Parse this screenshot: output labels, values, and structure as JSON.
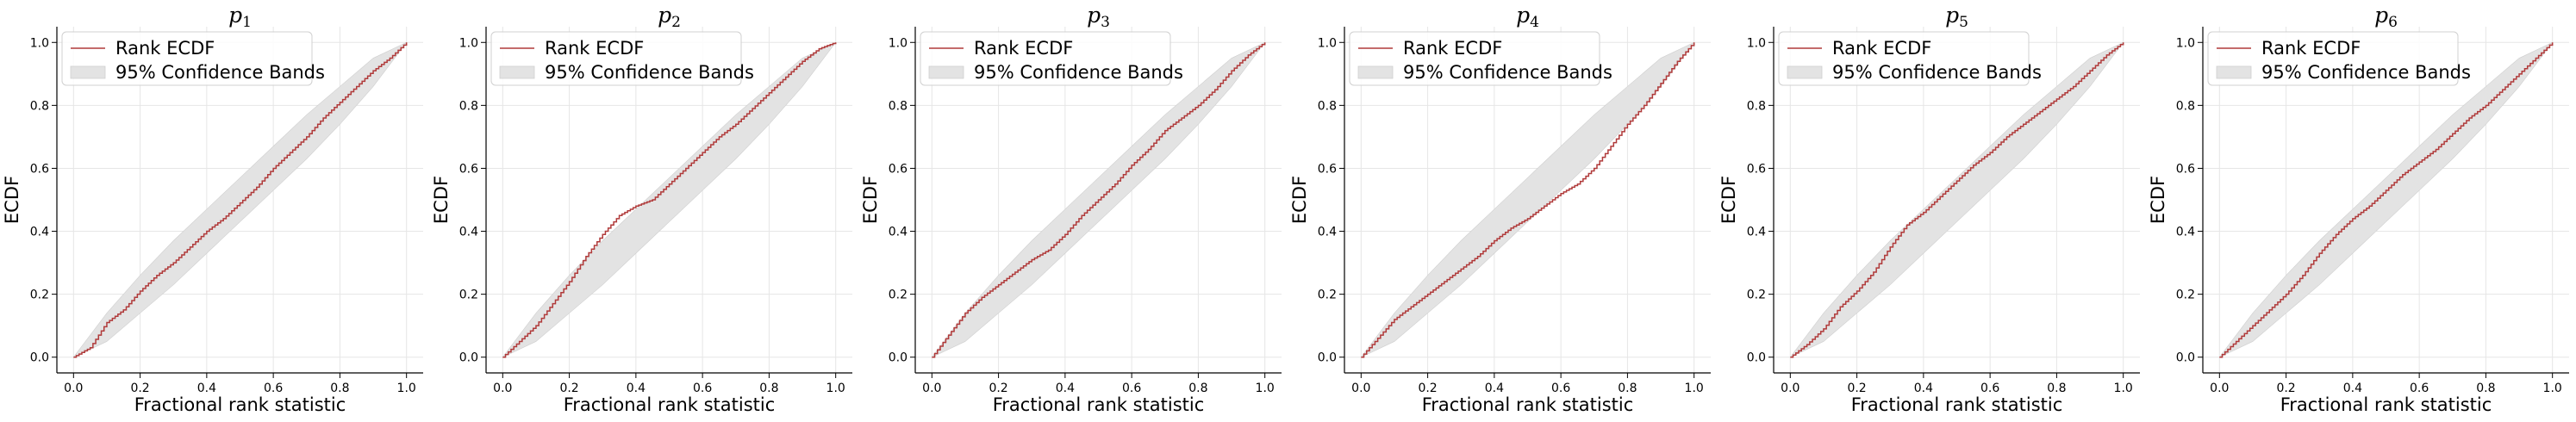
{
  "chart_data": [
    {
      "type": "line",
      "title": {
        "base": "p",
        "sub": "1"
      },
      "xlabel": "Fractional rank statistic",
      "ylabel": "ECDF",
      "xlim": [
        -0.05,
        1.05
      ],
      "ylim": [
        -0.05,
        1.05
      ],
      "xticks": [
        0.0,
        0.2,
        0.4,
        0.6,
        0.8,
        1.0
      ],
      "yticks": [
        0.0,
        0.2,
        0.4,
        0.6,
        0.8,
        1.0
      ],
      "xticklabels": [
        "0.0",
        "0.2",
        "0.4",
        "0.6",
        "0.8",
        "1.0"
      ],
      "yticklabels": [
        "0.0",
        "0.2",
        "0.4",
        "0.6",
        "0.8",
        "1.0"
      ],
      "grid": true,
      "legend_position": "top-left",
      "legend": [
        {
          "label": "Rank ECDF",
          "kind": "line"
        },
        {
          "label": "95% Confidence Bands",
          "kind": "band"
        }
      ],
      "series": [
        {
          "name": "Rank ECDF",
          "x": [
            0,
            0.05,
            0.1,
            0.15,
            0.2,
            0.25,
            0.3,
            0.35,
            0.4,
            0.45,
            0.5,
            0.55,
            0.6,
            0.65,
            0.7,
            0.75,
            0.8,
            0.85,
            0.9,
            0.95,
            1.0
          ],
          "y": [
            0.0,
            0.03,
            0.11,
            0.15,
            0.21,
            0.26,
            0.3,
            0.35,
            0.4,
            0.44,
            0.49,
            0.54,
            0.6,
            0.65,
            0.7,
            0.76,
            0.81,
            0.86,
            0.91,
            0.95,
            1.0
          ]
        }
      ],
      "bands": {
        "x": [
          0,
          0.1,
          0.2,
          0.3,
          0.4,
          0.5,
          0.6,
          0.7,
          0.8,
          0.9,
          1.0
        ],
        "lower": [
          0,
          0.05,
          0.14,
          0.23,
          0.33,
          0.43,
          0.53,
          0.63,
          0.74,
          0.86,
          1.0
        ],
        "upper": [
          0,
          0.14,
          0.26,
          0.37,
          0.47,
          0.57,
          0.67,
          0.77,
          0.86,
          0.95,
          1.0
        ]
      },
      "colors": {
        "line": "#b03a3a",
        "band": "#e3e3e3"
      }
    },
    {
      "type": "line",
      "title": {
        "base": "p",
        "sub": "2"
      },
      "xlabel": "Fractional rank statistic",
      "ylabel": "ECDF",
      "xlim": [
        -0.05,
        1.05
      ],
      "ylim": [
        -0.05,
        1.05
      ],
      "xticks": [
        0.0,
        0.2,
        0.4,
        0.6,
        0.8,
        1.0
      ],
      "yticks": [
        0.0,
        0.2,
        0.4,
        0.6,
        0.8,
        1.0
      ],
      "xticklabels": [
        "0.0",
        "0.2",
        "0.4",
        "0.6",
        "0.8",
        "1.0"
      ],
      "yticklabels": [
        "0.0",
        "0.2",
        "0.4",
        "0.6",
        "0.8",
        "1.0"
      ],
      "grid": true,
      "legend_position": "top-left",
      "legend": [
        {
          "label": "Rank ECDF",
          "kind": "line"
        },
        {
          "label": "95% Confidence Bands",
          "kind": "band"
        }
      ],
      "series": [
        {
          "name": "Rank ECDF",
          "x": [
            0,
            0.05,
            0.1,
            0.15,
            0.2,
            0.25,
            0.3,
            0.35,
            0.4,
            0.45,
            0.5,
            0.55,
            0.6,
            0.65,
            0.7,
            0.75,
            0.8,
            0.85,
            0.9,
            0.95,
            1.0
          ],
          "y": [
            0.0,
            0.05,
            0.1,
            0.17,
            0.24,
            0.32,
            0.39,
            0.45,
            0.48,
            0.5,
            0.55,
            0.6,
            0.65,
            0.7,
            0.74,
            0.79,
            0.84,
            0.89,
            0.94,
            0.98,
            1.0
          ]
        }
      ],
      "bands": {
        "x": [
          0,
          0.1,
          0.2,
          0.3,
          0.4,
          0.5,
          0.6,
          0.7,
          0.8,
          0.9,
          1.0
        ],
        "lower": [
          0,
          0.05,
          0.14,
          0.23,
          0.33,
          0.43,
          0.53,
          0.63,
          0.74,
          0.86,
          1.0
        ],
        "upper": [
          0,
          0.14,
          0.26,
          0.37,
          0.47,
          0.57,
          0.67,
          0.77,
          0.86,
          0.95,
          1.0
        ]
      },
      "colors": {
        "line": "#b03a3a",
        "band": "#e3e3e3"
      }
    },
    {
      "type": "line",
      "title": {
        "base": "p",
        "sub": "3"
      },
      "xlabel": "Fractional rank statistic",
      "ylabel": "ECDF",
      "xlim": [
        -0.05,
        1.05
      ],
      "ylim": [
        -0.05,
        1.05
      ],
      "xticks": [
        0.0,
        0.2,
        0.4,
        0.6,
        0.8,
        1.0
      ],
      "yticks": [
        0.0,
        0.2,
        0.4,
        0.6,
        0.8,
        1.0
      ],
      "xticklabels": [
        "0.0",
        "0.2",
        "0.4",
        "0.6",
        "0.8",
        "1.0"
      ],
      "yticklabels": [
        "0.0",
        "0.2",
        "0.4",
        "0.6",
        "0.8",
        "1.0"
      ],
      "grid": true,
      "legend_position": "top-left",
      "legend": [
        {
          "label": "Rank ECDF",
          "kind": "line"
        },
        {
          "label": "95% Confidence Bands",
          "kind": "band"
        }
      ],
      "series": [
        {
          "name": "Rank ECDF",
          "x": [
            0,
            0.05,
            0.1,
            0.15,
            0.2,
            0.25,
            0.3,
            0.35,
            0.4,
            0.45,
            0.5,
            0.55,
            0.6,
            0.65,
            0.7,
            0.75,
            0.8,
            0.85,
            0.9,
            0.95,
            1.0
          ],
          "y": [
            0.0,
            0.07,
            0.14,
            0.19,
            0.23,
            0.27,
            0.31,
            0.34,
            0.39,
            0.45,
            0.5,
            0.55,
            0.61,
            0.66,
            0.72,
            0.76,
            0.8,
            0.85,
            0.91,
            0.96,
            1.0
          ]
        }
      ],
      "bands": {
        "x": [
          0,
          0.1,
          0.2,
          0.3,
          0.4,
          0.5,
          0.6,
          0.7,
          0.8,
          0.9,
          1.0
        ],
        "lower": [
          0,
          0.05,
          0.14,
          0.23,
          0.33,
          0.43,
          0.53,
          0.63,
          0.74,
          0.86,
          1.0
        ],
        "upper": [
          0,
          0.14,
          0.26,
          0.37,
          0.47,
          0.57,
          0.67,
          0.77,
          0.86,
          0.95,
          1.0
        ]
      },
      "colors": {
        "line": "#b03a3a",
        "band": "#e3e3e3"
      }
    },
    {
      "type": "line",
      "title": {
        "base": "p",
        "sub": "4"
      },
      "xlabel": "Fractional rank statistic",
      "ylabel": "ECDF",
      "xlim": [
        -0.05,
        1.05
      ],
      "ylim": [
        -0.05,
        1.05
      ],
      "xticks": [
        0.0,
        0.2,
        0.4,
        0.6,
        0.8,
        1.0
      ],
      "yticks": [
        0.0,
        0.2,
        0.4,
        0.6,
        0.8,
        1.0
      ],
      "xticklabels": [
        "0.0",
        "0.2",
        "0.4",
        "0.6",
        "0.8",
        "1.0"
      ],
      "yticklabels": [
        "0.0",
        "0.2",
        "0.4",
        "0.6",
        "0.8",
        "1.0"
      ],
      "grid": true,
      "legend_position": "top-left",
      "legend": [
        {
          "label": "Rank ECDF",
          "kind": "line"
        },
        {
          "label": "95% Confidence Bands",
          "kind": "band"
        }
      ],
      "series": [
        {
          "name": "Rank ECDF",
          "x": [
            0,
            0.05,
            0.1,
            0.15,
            0.2,
            0.25,
            0.3,
            0.35,
            0.4,
            0.45,
            0.5,
            0.55,
            0.6,
            0.65,
            0.7,
            0.75,
            0.8,
            0.85,
            0.9,
            0.95,
            1.0
          ],
          "y": [
            0.0,
            0.06,
            0.12,
            0.16,
            0.2,
            0.24,
            0.28,
            0.32,
            0.37,
            0.41,
            0.44,
            0.48,
            0.52,
            0.55,
            0.6,
            0.67,
            0.74,
            0.8,
            0.87,
            0.94,
            1.0
          ]
        }
      ],
      "bands": {
        "x": [
          0,
          0.1,
          0.2,
          0.3,
          0.4,
          0.5,
          0.6,
          0.7,
          0.8,
          0.9,
          1.0
        ],
        "lower": [
          0,
          0.05,
          0.14,
          0.23,
          0.33,
          0.43,
          0.53,
          0.63,
          0.74,
          0.86,
          1.0
        ],
        "upper": [
          0,
          0.14,
          0.26,
          0.37,
          0.47,
          0.57,
          0.67,
          0.77,
          0.86,
          0.95,
          1.0
        ]
      },
      "colors": {
        "line": "#b03a3a",
        "band": "#e3e3e3"
      }
    },
    {
      "type": "line",
      "title": {
        "base": "p",
        "sub": "5"
      },
      "xlabel": "Fractional rank statistic",
      "ylabel": "ECDF",
      "xlim": [
        -0.05,
        1.05
      ],
      "ylim": [
        -0.05,
        1.05
      ],
      "xticks": [
        0.0,
        0.2,
        0.4,
        0.6,
        0.8,
        1.0
      ],
      "yticks": [
        0.0,
        0.2,
        0.4,
        0.6,
        0.8,
        1.0
      ],
      "xticklabels": [
        "0.0",
        "0.2",
        "0.4",
        "0.6",
        "0.8",
        "1.0"
      ],
      "yticklabels": [
        "0.0",
        "0.2",
        "0.4",
        "0.6",
        "0.8",
        "1.0"
      ],
      "grid": true,
      "legend_position": "top-left",
      "legend": [
        {
          "label": "Rank ECDF",
          "kind": "line"
        },
        {
          "label": "95% Confidence Bands",
          "kind": "band"
        }
      ],
      "series": [
        {
          "name": "Rank ECDF",
          "x": [
            0,
            0.05,
            0.1,
            0.15,
            0.2,
            0.25,
            0.3,
            0.35,
            0.4,
            0.45,
            0.5,
            0.55,
            0.6,
            0.65,
            0.7,
            0.75,
            0.8,
            0.85,
            0.9,
            0.95,
            1.0
          ],
          "y": [
            0.0,
            0.04,
            0.09,
            0.16,
            0.21,
            0.27,
            0.35,
            0.42,
            0.46,
            0.51,
            0.56,
            0.61,
            0.65,
            0.7,
            0.74,
            0.78,
            0.82,
            0.86,
            0.91,
            0.96,
            1.0
          ]
        }
      ],
      "bands": {
        "x": [
          0,
          0.1,
          0.2,
          0.3,
          0.4,
          0.5,
          0.6,
          0.7,
          0.8,
          0.9,
          1.0
        ],
        "lower": [
          0,
          0.05,
          0.14,
          0.23,
          0.33,
          0.43,
          0.53,
          0.63,
          0.74,
          0.86,
          1.0
        ],
        "upper": [
          0,
          0.14,
          0.26,
          0.37,
          0.47,
          0.57,
          0.67,
          0.77,
          0.86,
          0.95,
          1.0
        ]
      },
      "colors": {
        "line": "#b03a3a",
        "band": "#e3e3e3"
      }
    },
    {
      "type": "line",
      "title": {
        "base": "p",
        "sub": "6"
      },
      "xlabel": "Fractional rank statistic",
      "ylabel": "ECDF",
      "xlim": [
        -0.05,
        1.05
      ],
      "ylim": [
        -0.05,
        1.05
      ],
      "xticks": [
        0.0,
        0.2,
        0.4,
        0.6,
        0.8,
        1.0
      ],
      "yticks": [
        0.0,
        0.2,
        0.4,
        0.6,
        0.8,
        1.0
      ],
      "xticklabels": [
        "0.0",
        "0.2",
        "0.4",
        "0.6",
        "0.8",
        "1.0"
      ],
      "yticklabels": [
        "0.0",
        "0.2",
        "0.4",
        "0.6",
        "0.8",
        "1.0"
      ],
      "grid": true,
      "legend_position": "top-left",
      "legend": [
        {
          "label": "Rank ECDF",
          "kind": "line"
        },
        {
          "label": "95% Confidence Bands",
          "kind": "band"
        }
      ],
      "series": [
        {
          "name": "Rank ECDF",
          "x": [
            0,
            0.05,
            0.1,
            0.15,
            0.2,
            0.25,
            0.3,
            0.35,
            0.4,
            0.45,
            0.5,
            0.55,
            0.6,
            0.65,
            0.7,
            0.75,
            0.8,
            0.85,
            0.9,
            0.95,
            1.0
          ],
          "y": [
            0.0,
            0.05,
            0.1,
            0.15,
            0.2,
            0.26,
            0.33,
            0.39,
            0.44,
            0.48,
            0.53,
            0.58,
            0.62,
            0.66,
            0.71,
            0.76,
            0.8,
            0.85,
            0.9,
            0.95,
            1.0
          ]
        }
      ],
      "bands": {
        "x": [
          0,
          0.1,
          0.2,
          0.3,
          0.4,
          0.5,
          0.6,
          0.7,
          0.8,
          0.9,
          1.0
        ],
        "lower": [
          0,
          0.05,
          0.14,
          0.23,
          0.33,
          0.43,
          0.53,
          0.63,
          0.74,
          0.86,
          1.0
        ],
        "upper": [
          0,
          0.14,
          0.26,
          0.37,
          0.47,
          0.57,
          0.67,
          0.77,
          0.86,
          0.95,
          1.0
        ]
      },
      "colors": {
        "line": "#b03a3a",
        "band": "#e3e3e3"
      }
    }
  ]
}
